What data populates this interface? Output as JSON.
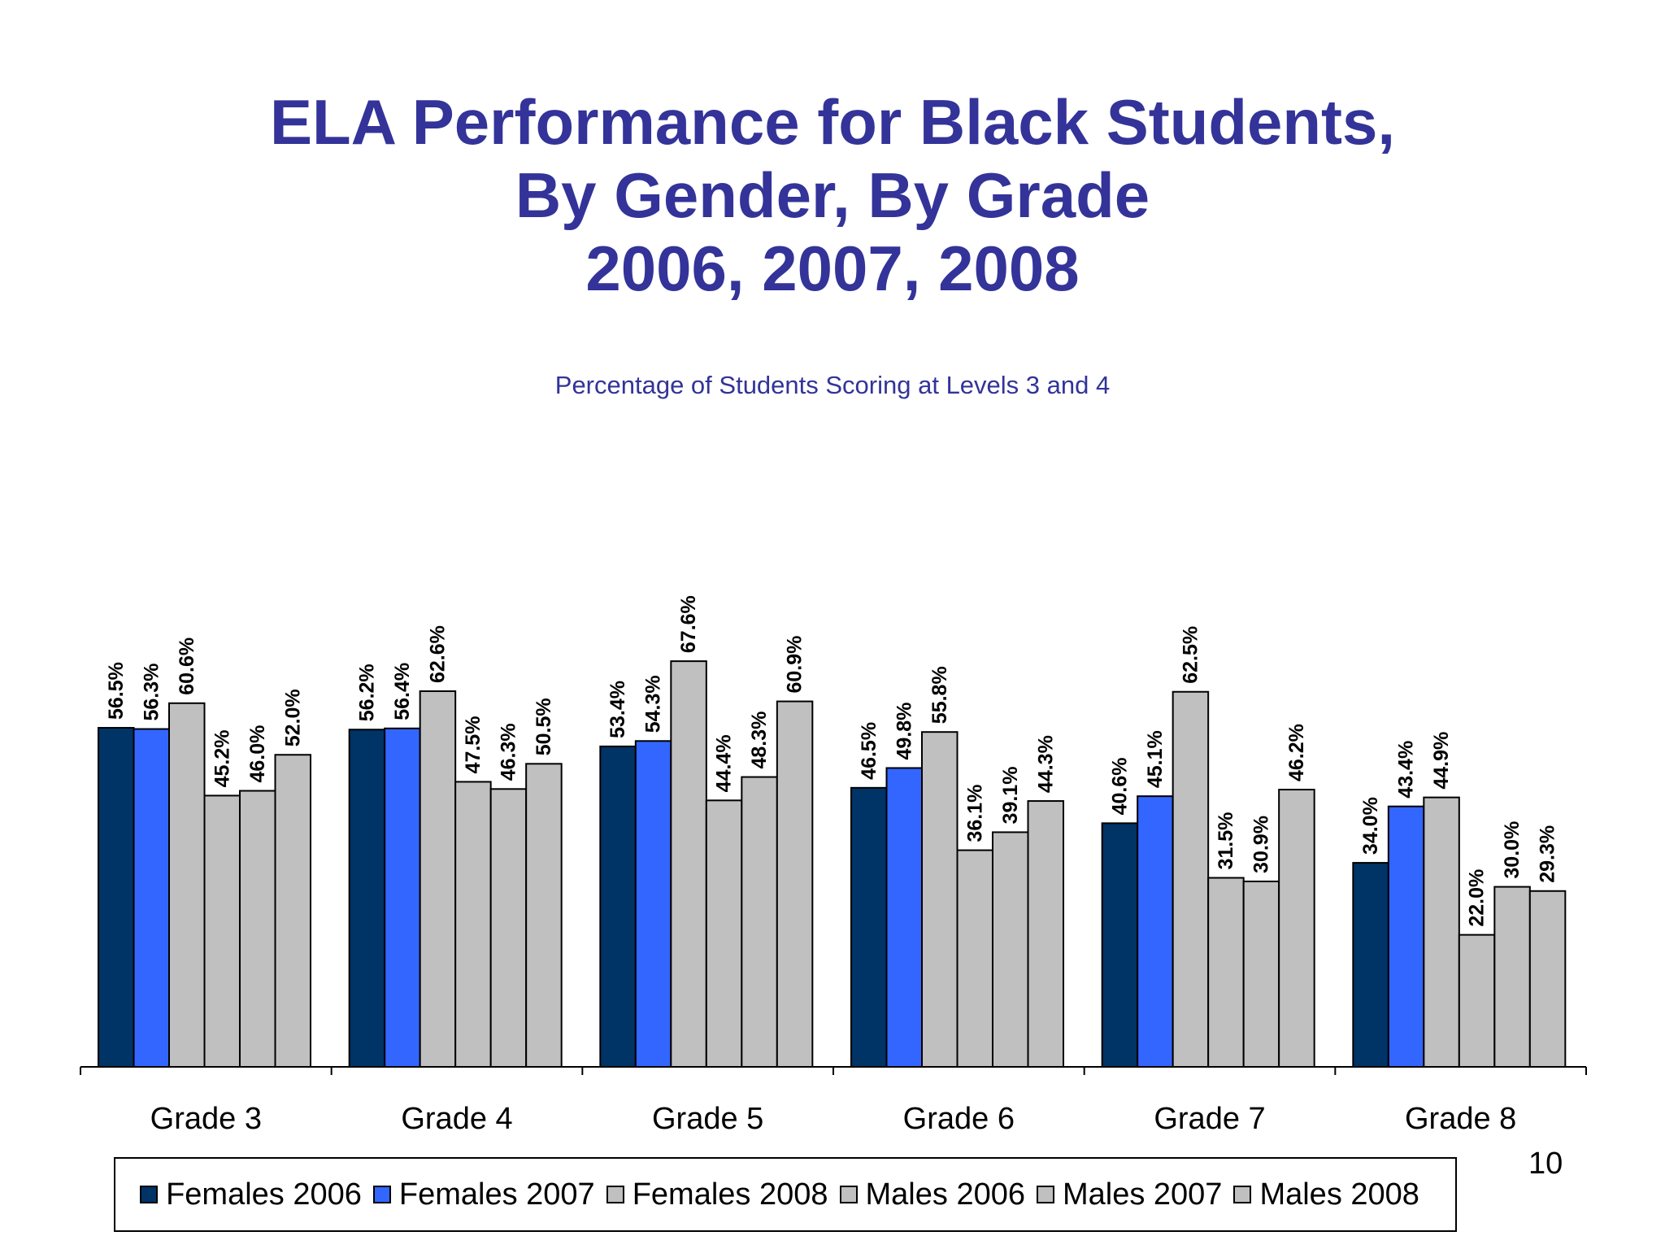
{
  "slide": {
    "title_lines": [
      "ELA Performance for Black Students,",
      "By Gender, By Grade",
      "2006, 2007, 2008"
    ],
    "page_number": "10"
  },
  "chart_data": {
    "type": "bar",
    "title": "ELA Performance for Black Students, By Gender, By Grade 2006, 2007, 2008",
    "subtitle": "Percentage of Students Scoring at Levels 3 and 4",
    "xlabel": "",
    "ylabel": "",
    "ylim": [
      0,
      100
    ],
    "grid": false,
    "legend_position": "bottom",
    "categories": [
      "Grade 3",
      "Grade 4",
      "Grade 5",
      "Grade 6",
      "Grade 7",
      "Grade 8"
    ],
    "series": [
      {
        "name": "Females 2006",
        "color": "#003366",
        "values": [
          56.5,
          56.2,
          53.4,
          46.5,
          40.6,
          34.0
        ],
        "labels": [
          "56.5%",
          "56.2%",
          "53.4%",
          "46.5%",
          "40.6%",
          "34.0%"
        ]
      },
      {
        "name": "Females 2007",
        "color": "#3366FF",
        "values": [
          56.3,
          56.4,
          54.3,
          49.8,
          45.1,
          43.4
        ],
        "labels": [
          "56.3%",
          "56.4%",
          "54.3%",
          "49.8%",
          "45.1%",
          "43.4%"
        ]
      },
      {
        "name": "Females 2008",
        "color": "#C0C0C0",
        "values": [
          60.6,
          62.6,
          67.6,
          55.8,
          62.5,
          44.9
        ],
        "labels": [
          "60.6%",
          "62.6%",
          "67.6%",
          "55.8%",
          "62.5%",
          "44.9%"
        ]
      },
      {
        "name": "Males 2006",
        "color": "#C0C0C0",
        "values": [
          45.2,
          47.5,
          44.4,
          36.1,
          31.5,
          22.0
        ],
        "labels": [
          "45.2%",
          "47.5%",
          "44.4%",
          "36.1%",
          "31.5%",
          "22.0%"
        ]
      },
      {
        "name": "Males 2007",
        "color": "#C0C0C0",
        "values": [
          46.0,
          46.3,
          48.3,
          39.1,
          30.9,
          30.0
        ],
        "labels": [
          "46.0%",
          "46.3%",
          "48.3%",
          "39.1%",
          "30.9%",
          "30.0%"
        ]
      },
      {
        "name": "Males 2008",
        "color": "#C0C0C0",
        "values": [
          52.0,
          50.5,
          60.9,
          44.3,
          46.2,
          29.3
        ],
        "labels": [
          "52.0%",
          "50.5%",
          "60.9%",
          "44.3%",
          "46.2%",
          "29.3%"
        ]
      }
    ]
  }
}
